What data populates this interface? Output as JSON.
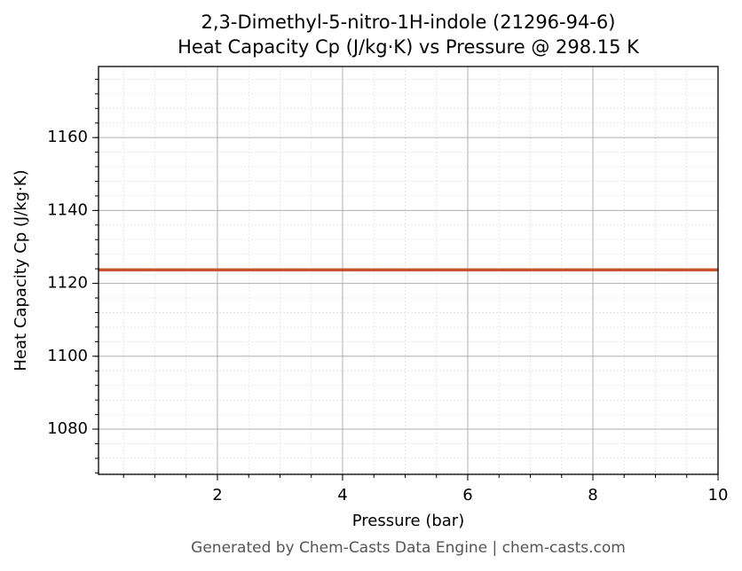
{
  "chart_data": {
    "type": "line",
    "title": "2,3-Dimethyl-5-nitro-1H-indole (21296-94-6)",
    "subtitle": "Heat Capacity Cp (J/kg·K) vs Pressure @ 298.15 K",
    "x_label": "Pressure (bar)",
    "y_label": "Heat Capacity Cp (J/kg·K)",
    "footer": "Generated by Chem-Casts Data Engine | chem-casts.com",
    "x": [
      0.1,
      10
    ],
    "series": [
      {
        "name": "Cp",
        "color": "#c4542b",
        "values": [
          1123.7,
          1123.7
        ]
      }
    ],
    "xlim": [
      0.1,
      10
    ],
    "xticks": [
      2,
      4,
      6,
      8,
      10
    ],
    "ylim": [
      1067.6,
      1179.5
    ],
    "yticks": [
      1080,
      1100,
      1120,
      1140,
      1160
    ],
    "grid": true,
    "minor_grid": true
  }
}
